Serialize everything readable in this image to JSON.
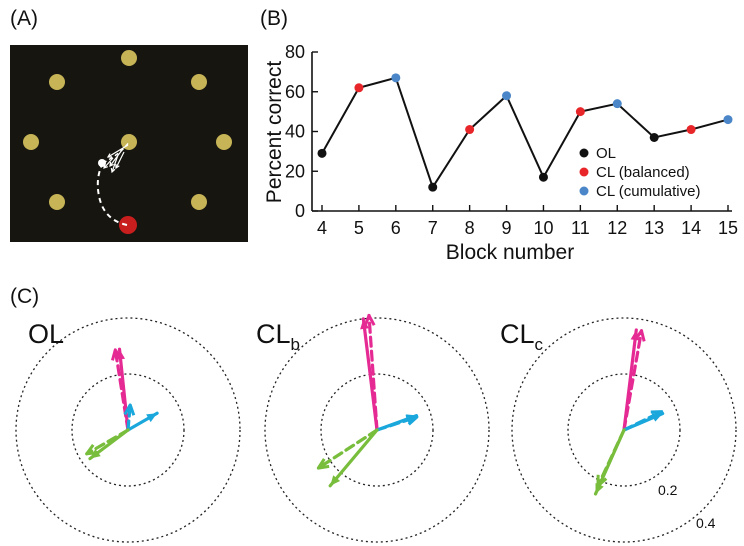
{
  "panels": {
    "a": {
      "label": "(A)"
    },
    "b": {
      "label": "(B)"
    },
    "c": {
      "label": "(C)"
    }
  },
  "colors": {
    "OL": "#111111",
    "CL (balanced)": "#e8262a",
    "CL (cumulative)": "#4a86c8",
    "arena_bg": "#16150f",
    "target": "#c6b456",
    "target_active": "#c81e1e",
    "arrow_pink": "#e52a93",
    "arrow_blue": "#1aa7dc",
    "arrow_green": "#78bd3b"
  },
  "chart_data": [
    {
      "type": "line",
      "panel": "(B)",
      "xlabel": "Block number",
      "ylabel": "Percent correct",
      "x": [
        4,
        5,
        6,
        7,
        8,
        9,
        10,
        11,
        12,
        13,
        14,
        15
      ],
      "y": [
        29,
        62,
        67,
        12,
        41,
        58,
        17,
        50,
        54,
        37,
        41,
        46
      ],
      "point_condition": [
        "OL",
        "CL (balanced)",
        "CL (cumulative)",
        "OL",
        "CL (balanced)",
        "CL (cumulative)",
        "OL",
        "CL (balanced)",
        "CL (cumulative)",
        "OL",
        "CL (balanced)",
        "CL (cumulative)"
      ],
      "xlim": [
        4,
        15
      ],
      "ylim": [
        0,
        80
      ],
      "yticks": [
        0,
        20,
        40,
        60,
        80
      ],
      "xticks": [
        4,
        5,
        6,
        7,
        8,
        9,
        10,
        11,
        12,
        13,
        14,
        15
      ],
      "legend": [
        "OL",
        "CL (balanced)",
        "CL (cumulative)"
      ],
      "legend_position": "right",
      "grid": false
    },
    {
      "type": "polar-vectors",
      "panel": "(C)",
      "ring_values": [
        0.2,
        0.4
      ],
      "ring_labels": [
        "0.2",
        "0.4"
      ],
      "subplots": [
        {
          "title": "OL",
          "subscript": "",
          "vectors": [
            {
              "color": "arrow_pink",
              "style": "solid",
              "angle_deg": 96,
              "magnitude": 0.29
            },
            {
              "color": "arrow_pink",
              "style": "dashed",
              "angle_deg": 99,
              "magnitude": 0.29
            },
            {
              "color": "arrow_blue",
              "style": "solid",
              "angle_deg": 30,
              "magnitude": 0.12
            },
            {
              "color": "arrow_blue",
              "style": "dashed",
              "angle_deg": 85,
              "magnitude": 0.09
            },
            {
              "color": "arrow_green",
              "style": "solid",
              "angle_deg": 217,
              "magnitude": 0.17
            },
            {
              "color": "arrow_green",
              "style": "dashed",
              "angle_deg": 210,
              "magnitude": 0.17
            }
          ]
        },
        {
          "title": "CL",
          "subscript": "b",
          "vectors": [
            {
              "color": "arrow_pink",
              "style": "solid",
              "angle_deg": 97,
              "magnitude": 0.4
            },
            {
              "color": "arrow_pink",
              "style": "dashed",
              "angle_deg": 94,
              "magnitude": 0.41
            },
            {
              "color": "arrow_blue",
              "style": "solid",
              "angle_deg": 20,
              "magnitude": 0.15
            },
            {
              "color": "arrow_blue",
              "style": "dashed",
              "angle_deg": 18,
              "magnitude": 0.15
            },
            {
              "color": "arrow_green",
              "style": "solid",
              "angle_deg": 230,
              "magnitude": 0.26
            },
            {
              "color": "arrow_green",
              "style": "dashed",
              "angle_deg": 213,
              "magnitude": 0.25
            }
          ]
        },
        {
          "title": "CL",
          "subscript": "c",
          "vectors": [
            {
              "color": "arrow_pink",
              "style": "solid",
              "angle_deg": 83,
              "magnitude": 0.36
            },
            {
              "color": "arrow_pink",
              "style": "dashed",
              "angle_deg": 80,
              "magnitude": 0.36
            },
            {
              "color": "arrow_blue",
              "style": "solid",
              "angle_deg": 23,
              "magnitude": 0.15
            },
            {
              "color": "arrow_blue",
              "style": "dashed",
              "angle_deg": 26,
              "magnitude": 0.15
            },
            {
              "color": "arrow_green",
              "style": "solid",
              "angle_deg": 246,
              "magnitude": 0.25
            },
            {
              "color": "arrow_green",
              "style": "dashed",
              "angle_deg": 245,
              "magnitude": 0.22
            }
          ]
        }
      ]
    }
  ]
}
